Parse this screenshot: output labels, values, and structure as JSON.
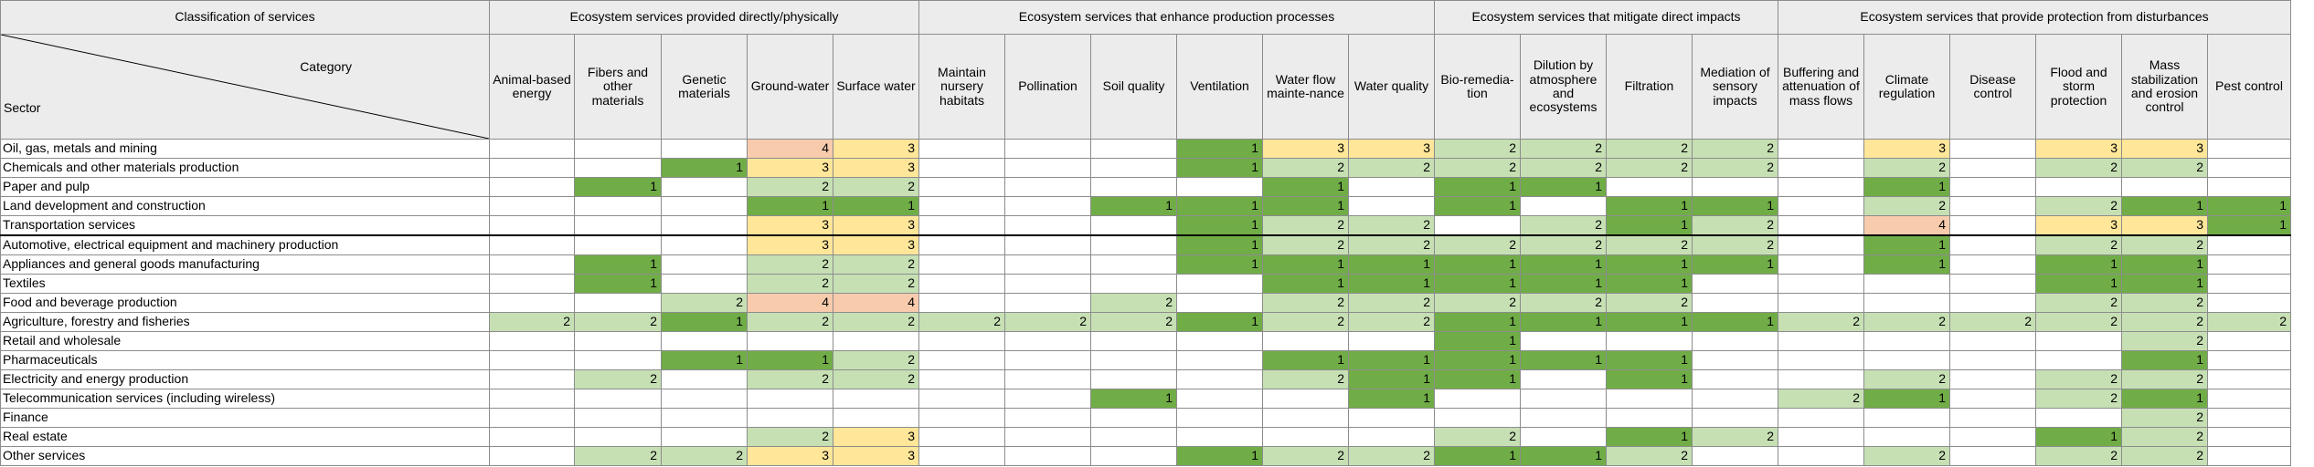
{
  "header": {
    "classification_label": "Classification of services",
    "category_label": "Category",
    "sector_label": "Sector"
  },
  "groups": [
    {
      "label": "Ecosystem services provided directly/physically",
      "span": 5
    },
    {
      "label": "Ecosystem services that enhance production processes",
      "span": 6
    },
    {
      "label": "Ecosystem services that mitigate direct impacts",
      "span": 4
    },
    {
      "label": "Ecosystem services that provide protection from disturbances",
      "span": 6
    }
  ],
  "colors": {
    "1": "#70ad47",
    "2": "#c6e0b4",
    "3": "#ffe699",
    "4": "#f8cbad"
  },
  "chart_data": {
    "type": "heatmap",
    "categories": [
      "Animal-based energy",
      "Fibers and other materials",
      "Genetic materials",
      "Ground-water",
      "Surface water",
      "Maintain nursery habitats",
      "Pollination",
      "Soil quality",
      "Ventilation",
      "Water flow mainte-nance",
      "Water quality",
      "Bio-remedia-tion",
      "Dilution by atmosphere and ecosystems",
      "Filtration",
      "Mediation of sensory impacts",
      "Buffering and attenuation of mass flows",
      "Climate regulation",
      "Disease control",
      "Flood and storm protection",
      "Mass stabilization and erosion control",
      "Pest control"
    ],
    "rows": [
      {
        "sector": "Oil, gas, metals and mining",
        "values": [
          null,
          null,
          null,
          4,
          3,
          null,
          null,
          null,
          1,
          3,
          3,
          2,
          2,
          2,
          2,
          null,
          3,
          null,
          3,
          3,
          null
        ]
      },
      {
        "sector": "Chemicals and other materials production",
        "values": [
          null,
          null,
          1,
          3,
          3,
          null,
          null,
          null,
          1,
          2,
          2,
          2,
          2,
          2,
          2,
          null,
          2,
          null,
          2,
          2,
          null
        ]
      },
      {
        "sector": "Paper and pulp",
        "values": [
          null,
          1,
          null,
          2,
          2,
          null,
          null,
          null,
          null,
          1,
          null,
          1,
          1,
          null,
          null,
          null,
          1,
          null,
          null,
          null,
          null
        ]
      },
      {
        "sector": "Land development and construction",
        "values": [
          null,
          null,
          null,
          1,
          1,
          null,
          null,
          1,
          1,
          1,
          null,
          1,
          null,
          1,
          1,
          null,
          2,
          null,
          2,
          1,
          1
        ]
      },
      {
        "sector": "Transportation services",
        "values": [
          null,
          null,
          null,
          3,
          3,
          null,
          null,
          null,
          1,
          2,
          2,
          null,
          2,
          1,
          2,
          null,
          4,
          null,
          3,
          3,
          1
        ]
      },
      {
        "sector": "Automotive, electrical equipment and machinery production",
        "values": [
          null,
          null,
          null,
          3,
          3,
          null,
          null,
          null,
          1,
          2,
          2,
          2,
          2,
          2,
          2,
          null,
          1,
          null,
          2,
          2,
          null
        ]
      },
      {
        "sector": "Appliances and general goods manufacturing",
        "values": [
          null,
          1,
          null,
          2,
          2,
          null,
          null,
          null,
          1,
          1,
          1,
          1,
          1,
          1,
          1,
          null,
          1,
          null,
          1,
          1,
          null
        ]
      },
      {
        "sector": "Textiles",
        "values": [
          null,
          1,
          null,
          2,
          2,
          null,
          null,
          null,
          null,
          1,
          1,
          1,
          1,
          1,
          null,
          null,
          null,
          null,
          1,
          1,
          null
        ]
      },
      {
        "sector": "Food and beverage production",
        "values": [
          null,
          null,
          2,
          4,
          4,
          null,
          null,
          2,
          null,
          2,
          2,
          2,
          2,
          2,
          null,
          null,
          null,
          null,
          2,
          2,
          null
        ]
      },
      {
        "sector": "Agriculture, forestry and fisheries",
        "values": [
          2,
          2,
          1,
          2,
          2,
          2,
          2,
          2,
          1,
          2,
          2,
          1,
          1,
          1,
          1,
          2,
          2,
          2,
          2,
          2,
          2
        ]
      },
      {
        "sector": "Retail and wholesale",
        "values": [
          null,
          null,
          null,
          null,
          null,
          null,
          null,
          null,
          null,
          null,
          null,
          1,
          null,
          null,
          null,
          null,
          null,
          null,
          null,
          2,
          null
        ]
      },
      {
        "sector": "Pharmaceuticals",
        "values": [
          null,
          null,
          1,
          1,
          2,
          null,
          null,
          null,
          null,
          1,
          1,
          1,
          1,
          1,
          null,
          null,
          null,
          null,
          null,
          1,
          null
        ]
      },
      {
        "sector": "Electricity and energy production",
        "values": [
          null,
          2,
          null,
          2,
          2,
          null,
          null,
          null,
          null,
          2,
          1,
          1,
          null,
          1,
          null,
          null,
          2,
          null,
          2,
          2,
          null
        ]
      },
      {
        "sector": "Telecommunication services (including wireless)",
        "values": [
          null,
          null,
          null,
          null,
          null,
          null,
          null,
          1,
          null,
          null,
          1,
          null,
          null,
          null,
          null,
          2,
          1,
          null,
          2,
          1,
          null
        ]
      },
      {
        "sector": "Finance",
        "values": [
          null,
          null,
          null,
          null,
          null,
          null,
          null,
          null,
          null,
          null,
          null,
          null,
          null,
          null,
          null,
          null,
          null,
          null,
          null,
          2,
          null
        ]
      },
      {
        "sector": "Real estate",
        "values": [
          null,
          null,
          null,
          2,
          3,
          null,
          null,
          null,
          null,
          null,
          null,
          2,
          null,
          1,
          2,
          null,
          null,
          null,
          1,
          2,
          null
        ]
      },
      {
        "sector": "Other services",
        "values": [
          null,
          2,
          2,
          3,
          3,
          null,
          null,
          null,
          1,
          2,
          2,
          1,
          1,
          2,
          null,
          null,
          2,
          null,
          2,
          2,
          null
        ]
      }
    ]
  }
}
